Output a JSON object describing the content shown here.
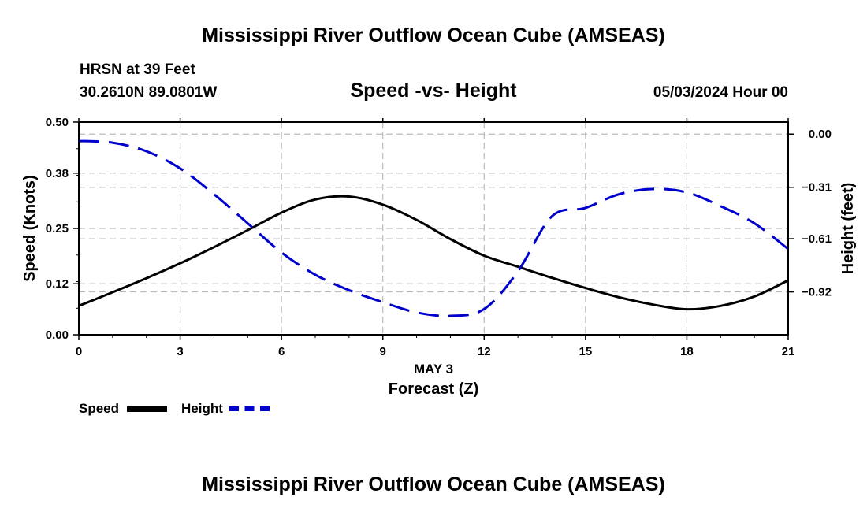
{
  "header": {
    "title": "Mississippi River Outflow Ocean Cube (AMSEAS)",
    "station": "HRSN at 39 Feet",
    "location": "30.2610N  89.0801W",
    "subtitle": "Speed -vs- Height",
    "datetime": "05/03/2024 Hour 00"
  },
  "footer": {
    "title": "Mississippi River Outflow Ocean Cube (AMSEAS)"
  },
  "legend": {
    "speed_label": "Speed",
    "height_label": "Height"
  },
  "colors": {
    "speed": "#000000",
    "height": "#0000cc",
    "grid": "#bbbbbb"
  },
  "chart_data": {
    "type": "line",
    "title": "Speed -vs- Height",
    "xlabel": "Forecast (Z)",
    "xlabel_date": "MAY 3",
    "ylabel_left": "Speed (Knots)",
    "ylabel_right": "Height (feet)",
    "xlim": [
      0,
      21
    ],
    "ylim_left": [
      0,
      0.5
    ],
    "ylim_right": [
      -1.17,
      0.07
    ],
    "x_ticks": [
      "0",
      "3",
      "6",
      "9",
      "12",
      "15",
      "18",
      "21"
    ],
    "y_ticks_left": [
      "0.00",
      "0.12",
      "0.25",
      "0.38",
      "0.50"
    ],
    "y_ticks_right": [
      "0.00",
      "-0.31",
      "-0.61",
      "-0.92"
    ],
    "legend_position": "bottom-left",
    "grid": true,
    "series": [
      {
        "name": "Speed",
        "axis": "left",
        "style": "solid",
        "x": [
          0,
          1,
          2,
          3,
          4,
          5,
          6,
          7,
          8,
          9,
          10,
          11,
          12,
          13,
          14,
          15,
          16,
          17,
          18,
          19,
          20,
          21
        ],
        "values": [
          0.068,
          0.1,
          0.133,
          0.168,
          0.206,
          0.246,
          0.287,
          0.318,
          0.325,
          0.306,
          0.27,
          0.225,
          0.186,
          0.16,
          0.134,
          0.11,
          0.088,
          0.071,
          0.06,
          0.068,
          0.09,
          0.128
        ]
      },
      {
        "name": "Height",
        "axis": "right",
        "style": "dashed",
        "x": [
          0,
          1,
          2,
          3,
          4,
          5,
          6,
          7,
          8,
          9,
          10,
          11,
          12,
          13,
          14,
          15,
          16,
          17,
          18,
          19,
          20,
          21
        ],
        "values": [
          -0.04,
          -0.05,
          -0.1,
          -0.2,
          -0.35,
          -0.52,
          -0.69,
          -0.82,
          -0.91,
          -0.98,
          -1.04,
          -1.06,
          -1.02,
          -0.8,
          -0.48,
          -0.43,
          -0.35,
          -0.32,
          -0.34,
          -0.42,
          -0.52,
          -0.67
        ]
      }
    ]
  }
}
